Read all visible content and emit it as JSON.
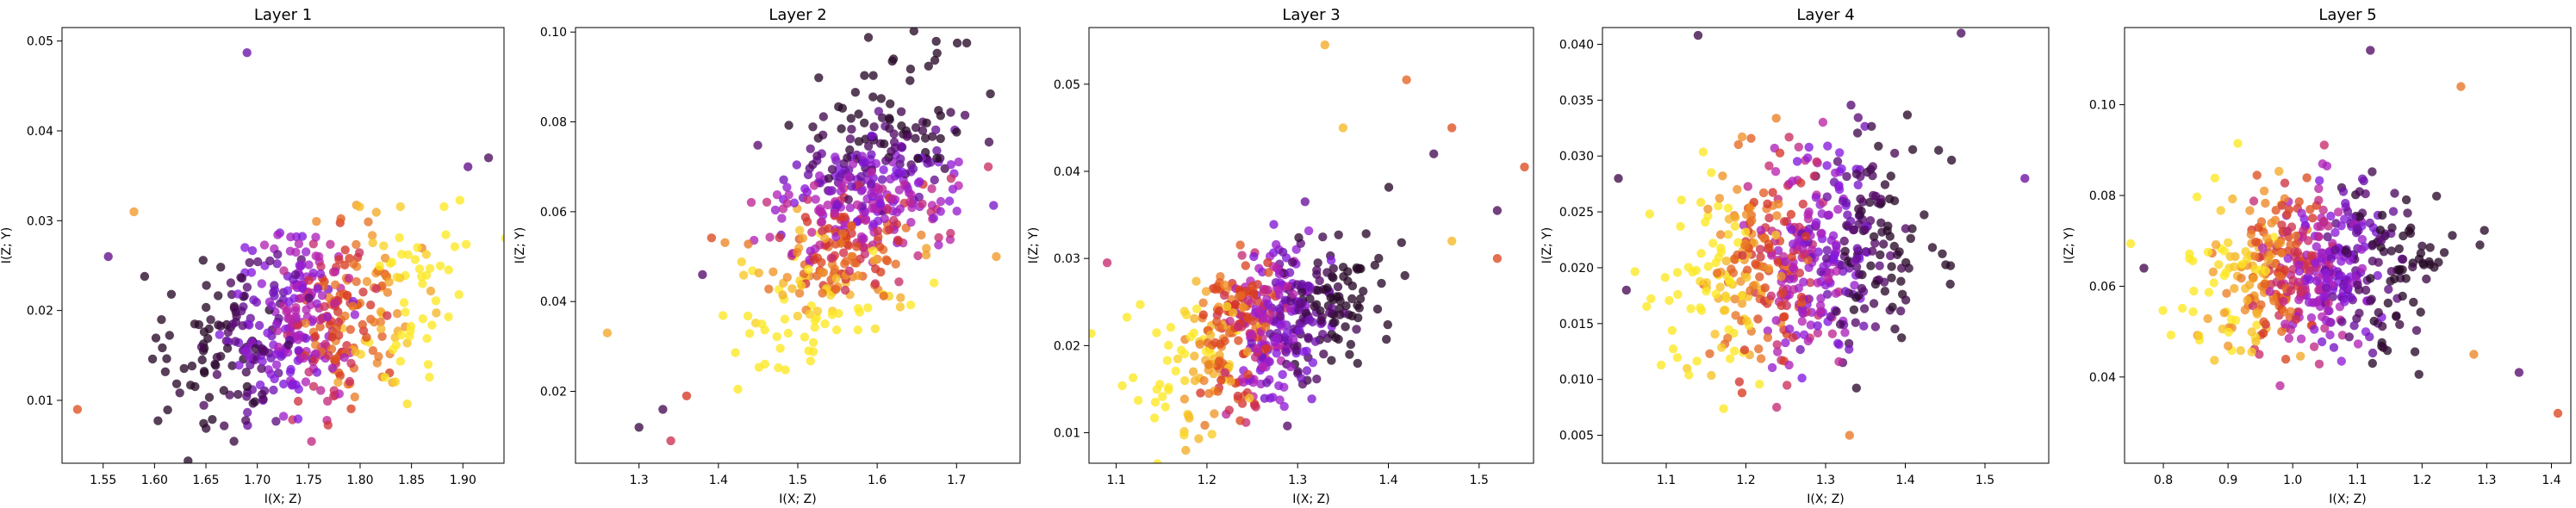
{
  "chart_data": [
    {
      "type": "scatter",
      "title": "Layer 1",
      "xlabel": "I(X; Z)",
      "ylabel": "I(Z; Y)",
      "xlim": [
        1.51,
        1.94
      ],
      "ylim": [
        0.003,
        0.0515
      ],
      "xticks": [
        "1.55",
        "1.60",
        "1.65",
        "1.70",
        "1.75",
        "1.80",
        "1.85",
        "1.90"
      ],
      "yticks": [
        "0.01",
        "0.02",
        "0.03",
        "0.04",
        "0.05"
      ],
      "cloud": {
        "center": [
          1.75,
          0.0185
        ],
        "spread": [
          0.06,
          0.0055
        ],
        "corr": 0.35,
        "count": 520,
        "colorAxis": "x",
        "colorOrder": 1
      },
      "outliers": [
        [
          1.69,
          0.0487
        ],
        [
          1.905,
          0.036
        ],
        [
          1.925,
          0.037
        ],
        [
          1.525,
          0.009
        ],
        [
          1.555,
          0.026
        ],
        [
          1.58,
          0.031
        ]
      ],
      "grid": false,
      "legend": "none"
    },
    {
      "type": "scatter",
      "title": "Layer 2",
      "xlabel": "I(X; Z)",
      "ylabel": "I(Z; Y)",
      "xlim": [
        1.22,
        1.78
      ],
      "ylim": [
        0.004,
        0.101
      ],
      "xticks": [
        "1.3",
        "1.4",
        "1.5",
        "1.6",
        "1.7"
      ],
      "yticks": [
        "0.02",
        "0.04",
        "0.06",
        "0.08",
        "0.10"
      ],
      "cloud": {
        "center": [
          1.575,
          0.06
        ],
        "spread": [
          0.065,
          0.015
        ],
        "corr": 0.55,
        "count": 520,
        "colorAxis": "y",
        "colorOrder": -1
      },
      "outliers": [
        [
          1.26,
          0.033
        ],
        [
          1.3,
          0.012
        ],
        [
          1.34,
          0.009
        ],
        [
          1.33,
          0.016
        ],
        [
          1.36,
          0.019
        ],
        [
          1.38,
          0.046
        ],
        [
          1.74,
          0.07
        ],
        [
          1.75,
          0.05
        ]
      ],
      "grid": false,
      "legend": "none"
    },
    {
      "type": "scatter",
      "title": "Layer 3",
      "xlabel": "I(X; Z)",
      "ylabel": "I(Z; Y)",
      "xlim": [
        1.07,
        1.56
      ],
      "ylim": [
        0.0065,
        0.0565
      ],
      "xticks": [
        "1.1",
        "1.2",
        "1.3",
        "1.4",
        "1.5"
      ],
      "yticks": [
        "0.01",
        "0.02",
        "0.03",
        "0.04",
        "0.05"
      ],
      "cloud": {
        "center": [
          1.26,
          0.022
        ],
        "spread": [
          0.055,
          0.0048
        ],
        "corr": 0.4,
        "count": 520,
        "colorAxis": "x",
        "colorOrder": -1
      },
      "outliers": [
        [
          1.33,
          0.0545
        ],
        [
          1.42,
          0.0505
        ],
        [
          1.47,
          0.045
        ],
        [
          1.45,
          0.042
        ],
        [
          1.55,
          0.0405
        ],
        [
          1.52,
          0.0355
        ],
        [
          1.47,
          0.032
        ],
        [
          1.52,
          0.03
        ],
        [
          1.35,
          0.045
        ],
        [
          1.09,
          0.0295
        ]
      ],
      "grid": false,
      "legend": "none"
    },
    {
      "type": "scatter",
      "title": "Layer 4",
      "xlabel": "I(X; Z)",
      "ylabel": "I(Z; Y)",
      "xlim": [
        1.02,
        1.58
      ],
      "ylim": [
        0.0025,
        0.0415
      ],
      "xticks": [
        "1.1",
        "1.2",
        "1.3",
        "1.4",
        "1.5"
      ],
      "yticks": [
        "0.005",
        "0.010",
        "0.015",
        "0.020",
        "0.025",
        "0.030",
        "0.035",
        "0.040"
      ],
      "cloud": {
        "center": [
          1.27,
          0.021
        ],
        "spread": [
          0.075,
          0.0048
        ],
        "corr": 0.15,
        "count": 540,
        "colorAxis": "x",
        "colorOrder": -1
      },
      "outliers": [
        [
          1.14,
          0.0408
        ],
        [
          1.47,
          0.041
        ],
        [
          1.55,
          0.028
        ],
        [
          1.05,
          0.018
        ],
        [
          1.04,
          0.028
        ],
        [
          1.33,
          0.005
        ]
      ],
      "grid": false,
      "legend": "none"
    },
    {
      "type": "scatter",
      "title": "Layer 5",
      "xlabel": "I(X; Z)",
      "ylabel": "I(Z; Y)",
      "xlim": [
        0.74,
        1.43
      ],
      "ylim": [
        0.021,
        0.117
      ],
      "xticks": [
        "0.8",
        "0.9",
        "1.0",
        "1.1",
        "1.2",
        "1.3",
        "1.4"
      ],
      "yticks": [
        "0.04",
        "0.06",
        "0.08",
        "0.10"
      ],
      "cloud": {
        "center": [
          1.03,
          0.064
        ],
        "spread": [
          0.09,
          0.0095
        ],
        "corr": 0.1,
        "count": 540,
        "colorAxis": "x",
        "colorOrder": -1
      },
      "outliers": [
        [
          1.12,
          0.112
        ],
        [
          1.26,
          0.104
        ],
        [
          1.35,
          0.041
        ],
        [
          1.41,
          0.032
        ],
        [
          0.77,
          0.064
        ],
        [
          1.28,
          0.045
        ]
      ],
      "grid": false,
      "legend": "none"
    }
  ]
}
